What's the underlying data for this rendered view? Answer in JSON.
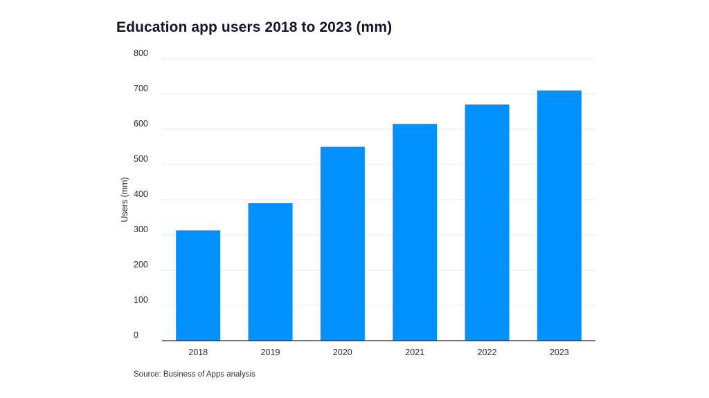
{
  "chart_data": {
    "type": "bar",
    "title": "Education app users 2018 to 2023 (mm)",
    "xlabel": "",
    "ylabel": "Users (mm)",
    "categories": [
      "2018",
      "2019",
      "2020",
      "2021",
      "2022",
      "2023"
    ],
    "values": [
      313,
      390,
      550,
      615,
      670,
      710
    ],
    "ylim": [
      0,
      800
    ],
    "yticks": [
      0,
      100,
      200,
      300,
      400,
      500,
      600,
      700,
      800
    ],
    "ytick_labels": [
      "0",
      "100",
      "200",
      "300",
      "400",
      "500",
      "600",
      "700",
      "800"
    ],
    "grid": true,
    "legend": "none",
    "source": "Source: Business of Apps analysis"
  },
  "colors": {
    "bar": "#0091FF",
    "grid": "#e9e9ef",
    "axis": "#222222"
  }
}
